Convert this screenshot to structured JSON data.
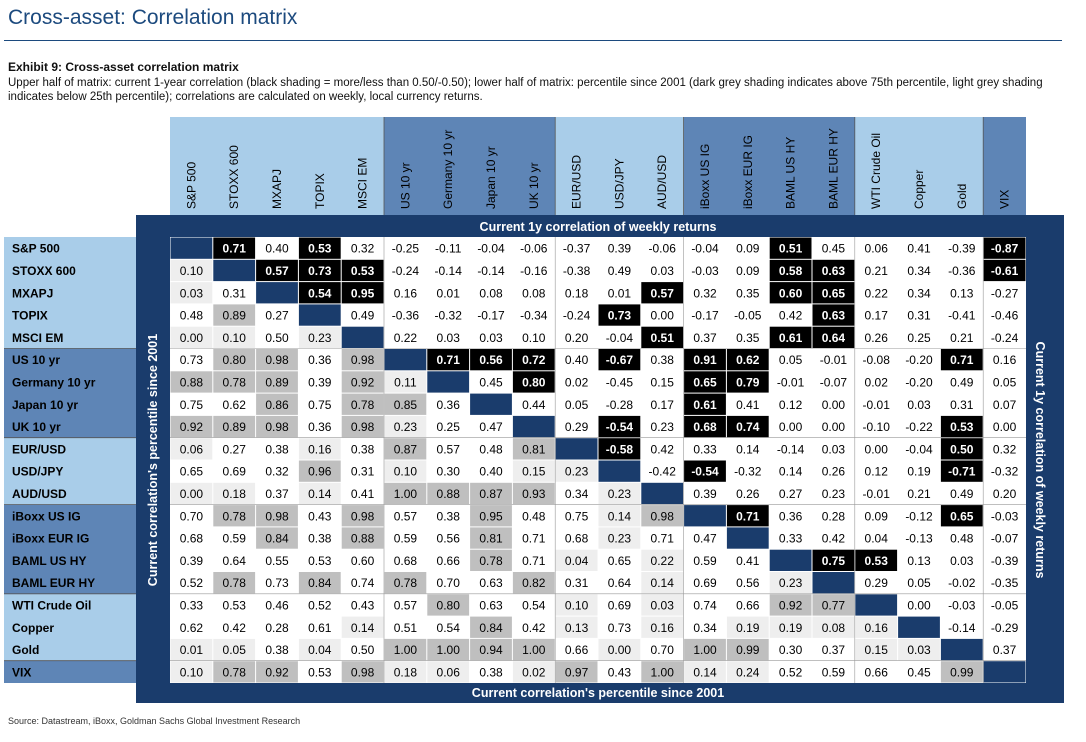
{
  "page": {
    "title": "Cross-asset: Correlation matrix",
    "exhibit_title": "Exhibit 9: Cross-asset correlation matrix",
    "description": "Upper half of matrix: current 1-year correlation (black shading = more/less than 0.50/-0.50); lower half of matrix: percentile since 2001 (dark grey shading indicates above 75th percentile, light grey shading indicates below 25th percentile); correlations are calculated on weekly, local currency returns.",
    "source": "Source: Datastream, iBoxx, Goldman Sachs Global Investment Research"
  },
  "colors": {
    "title": "#1c4a7e",
    "header_light": "#a9cde9",
    "header_dark": "#5e85b6",
    "panel_dark": "#1a3c6c",
    "black_cell": "#000000",
    "dark_grey_cell": "#bfbfbf",
    "light_grey_cell": "#eeeeee"
  },
  "chart_data": {
    "type": "heatmap",
    "assets": [
      "S&P 500",
      "STOXX 600",
      "MXAPJ",
      "TOPIX",
      "MSCI EM",
      "US 10 yr",
      "Germany 10 yr",
      "Japan 10 yr",
      "UK 10 yr",
      "EUR/USD",
      "USD/JPY",
      "AUD/USD",
      "iBoxx US IG",
      "iBoxx EUR IG",
      "BAML US HY",
      "BAML EUR HY",
      "WTI Crude Oil",
      "Copper",
      "Gold",
      "VIX"
    ],
    "groups": [
      {
        "start": 0,
        "end": 4
      },
      {
        "start": 5,
        "end": 8
      },
      {
        "start": 9,
        "end": 11
      },
      {
        "start": 12,
        "end": 15
      },
      {
        "start": 16,
        "end": 18
      },
      {
        "start": 19,
        "end": 19
      }
    ],
    "top_label": "Current 1y correlation of weekly returns",
    "bottom_label": "Current correlation's percentile since 2001",
    "left_label": "Current correlation's percentile since 2001",
    "right_label": "Current 1y correlation of weekly returns",
    "values": [
      [
        "",
        "0.71",
        "0.40",
        "0.53",
        "0.32",
        "-0.25",
        "-0.11",
        "-0.04",
        "-0.06",
        "-0.37",
        "0.39",
        "-0.06",
        "-0.04",
        "0.09",
        "0.51",
        "0.45",
        "0.06",
        "0.41",
        "-0.39",
        "-0.87"
      ],
      [
        "0.10",
        "",
        "0.57",
        "0.73",
        "0.53",
        "-0.24",
        "-0.14",
        "-0.14",
        "-0.16",
        "-0.38",
        "0.49",
        "0.03",
        "-0.03",
        "0.09",
        "0.58",
        "0.63",
        "0.21",
        "0.34",
        "-0.36",
        "-0.61"
      ],
      [
        "0.03",
        "0.31",
        "",
        "0.54",
        "0.95",
        "0.16",
        "0.01",
        "0.08",
        "0.08",
        "0.18",
        "0.01",
        "0.57",
        "0.32",
        "0.35",
        "0.60",
        "0.65",
        "0.22",
        "0.34",
        "0.13",
        "-0.27"
      ],
      [
        "0.48",
        "0.89",
        "0.27",
        "",
        "0.49",
        "-0.36",
        "-0.32",
        "-0.17",
        "-0.34",
        "-0.24",
        "0.73",
        "0.00",
        "-0.17",
        "-0.05",
        "0.42",
        "0.63",
        "0.17",
        "0.31",
        "-0.41",
        "-0.46"
      ],
      [
        "0.00",
        "0.10",
        "0.50",
        "0.23",
        "",
        "0.22",
        "0.03",
        "0.03",
        "0.10",
        "0.20",
        "-0.04",
        "0.51",
        "0.37",
        "0.35",
        "0.61",
        "0.64",
        "0.26",
        "0.25",
        "0.21",
        "-0.24"
      ],
      [
        "0.73",
        "0.80",
        "0.98",
        "0.36",
        "0.98",
        "",
        "0.71",
        "0.56",
        "0.72",
        "0.40",
        "-0.67",
        "0.38",
        "0.91",
        "0.62",
        "0.05",
        "-0.01",
        "-0.08",
        "-0.20",
        "0.71",
        "0.16"
      ],
      [
        "0.88",
        "0.78",
        "0.89",
        "0.39",
        "0.92",
        "0.11",
        "",
        "0.45",
        "0.80",
        "0.02",
        "-0.45",
        "0.15",
        "0.65",
        "0.79",
        "-0.01",
        "-0.07",
        "0.02",
        "-0.20",
        "0.49",
        "0.05"
      ],
      [
        "0.75",
        "0.62",
        "0.86",
        "0.75",
        "0.78",
        "0.85",
        "0.36",
        "",
        "0.44",
        "0.05",
        "-0.28",
        "0.17",
        "0.61",
        "0.41",
        "0.12",
        "0.00",
        "-0.01",
        "0.03",
        "0.31",
        "0.07"
      ],
      [
        "0.92",
        "0.89",
        "0.98",
        "0.36",
        "0.98",
        "0.23",
        "0.25",
        "0.47",
        "",
        "0.29",
        "-0.54",
        "0.23",
        "0.68",
        "0.74",
        "0.00",
        "0.00",
        "-0.10",
        "-0.22",
        "0.53",
        "0.00"
      ],
      [
        "0.06",
        "0.27",
        "0.38",
        "0.16",
        "0.38",
        "0.87",
        "0.57",
        "0.48",
        "0.81",
        "",
        "-0.58",
        "0.42",
        "0.33",
        "0.14",
        "-0.14",
        "0.03",
        "0.00",
        "-0.04",
        "0.50",
        "0.32"
      ],
      [
        "0.65",
        "0.69",
        "0.32",
        "0.96",
        "0.31",
        "0.10",
        "0.30",
        "0.40",
        "0.15",
        "0.23",
        "",
        "-0.42",
        "-0.54",
        "-0.32",
        "0.14",
        "0.26",
        "0.12",
        "0.19",
        "-0.71",
        "-0.32"
      ],
      [
        "0.00",
        "0.18",
        "0.37",
        "0.14",
        "0.41",
        "1.00",
        "0.88",
        "0.87",
        "0.93",
        "0.34",
        "0.23",
        "",
        "0.39",
        "0.26",
        "0.27",
        "0.23",
        "-0.01",
        "0.21",
        "0.49",
        "0.20"
      ],
      [
        "0.70",
        "0.78",
        "0.98",
        "0.43",
        "0.98",
        "0.57",
        "0.38",
        "0.95",
        "0.48",
        "0.75",
        "0.14",
        "0.98",
        "",
        "0.71",
        "0.36",
        "0.28",
        "0.09",
        "-0.12",
        "0.65",
        "-0.03"
      ],
      [
        "0.68",
        "0.59",
        "0.84",
        "0.38",
        "0.88",
        "0.59",
        "0.56",
        "0.81",
        "0.71",
        "0.68",
        "0.23",
        "0.71",
        "0.47",
        "",
        "0.33",
        "0.42",
        "0.04",
        "-0.13",
        "0.48",
        "-0.07"
      ],
      [
        "0.39",
        "0.64",
        "0.55",
        "0.53",
        "0.60",
        "0.68",
        "0.66",
        "0.78",
        "0.71",
        "0.04",
        "0.65",
        "0.22",
        "0.59",
        "0.41",
        "",
        "0.75",
        "0.53",
        "0.13",
        "0.03",
        "-0.39"
      ],
      [
        "0.52",
        "0.78",
        "0.73",
        "0.84",
        "0.74",
        "0.78",
        "0.70",
        "0.63",
        "0.82",
        "0.31",
        "0.64",
        "0.14",
        "0.69",
        "0.56",
        "0.23",
        "",
        "0.29",
        "0.05",
        "-0.02",
        "-0.35"
      ],
      [
        "0.33",
        "0.53",
        "0.46",
        "0.52",
        "0.43",
        "0.57",
        "0.80",
        "0.63",
        "0.54",
        "0.10",
        "0.69",
        "0.03",
        "0.74",
        "0.66",
        "0.92",
        "0.77",
        "",
        "0.00",
        "-0.03",
        "-0.05"
      ],
      [
        "0.62",
        "0.42",
        "0.28",
        "0.61",
        "0.14",
        "0.51",
        "0.54",
        "0.84",
        "0.42",
        "0.13",
        "0.73",
        "0.16",
        "0.34",
        "0.19",
        "0.19",
        "0.08",
        "0.16",
        "",
        "-0.14",
        "-0.29"
      ],
      [
        "0.01",
        "0.05",
        "0.38",
        "0.04",
        "0.50",
        "1.00",
        "1.00",
        "0.94",
        "1.00",
        "0.66",
        "0.00",
        "0.70",
        "1.00",
        "0.99",
        "0.30",
        "0.37",
        "0.15",
        "0.03",
        "",
        "0.37"
      ],
      [
        "0.10",
        "0.78",
        "0.92",
        "0.53",
        "0.98",
        "0.18",
        "0.06",
        "0.38",
        "0.02",
        "0.97",
        "0.43",
        "1.00",
        "0.14",
        "0.24",
        "0.52",
        "0.59",
        "0.66",
        "0.45",
        "0.99",
        ""
      ]
    ]
  }
}
